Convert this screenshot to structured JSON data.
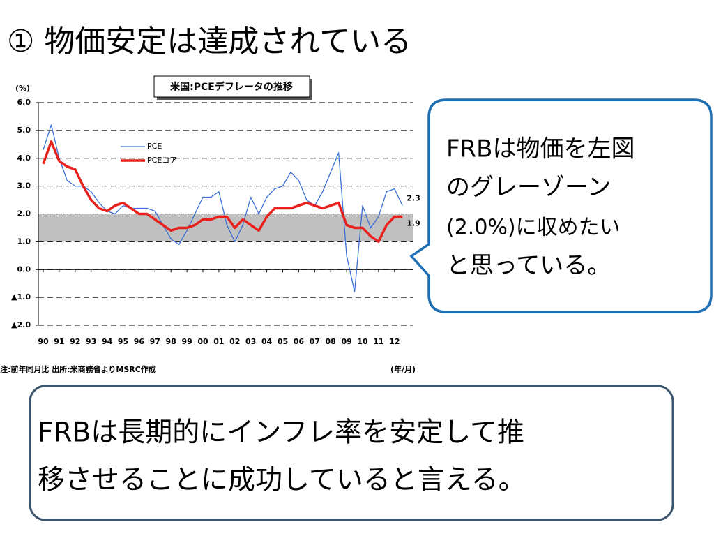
{
  "slide": {
    "title": "① 物価安定は達成されている",
    "callout_lines": [
      "FRBは物価を左図",
      "のグレーゾーン",
      "(2.0%)に収めたい",
      "と思っている。"
    ],
    "bottom_lines": [
      "FRBは長期的にインフレ率を安定して推",
      "移させることに成功していると言える。"
    ]
  },
  "chart_data": {
    "type": "line",
    "title": "米国:PCEデフレータの推移",
    "y_unit": "(%)",
    "x_unit": "(年/月)",
    "note": "注:前年同月比 出所:米商務省よりMSRC作成",
    "categories": [
      "90",
      null,
      "91",
      null,
      "92",
      null,
      "93",
      null,
      "94",
      null,
      "95",
      null,
      "96",
      null,
      "97",
      null,
      "98",
      null,
      "99",
      null,
      "00",
      null,
      "01",
      null,
      "02",
      null,
      "03",
      null,
      "04",
      null,
      "05",
      null,
      "06",
      null,
      "07",
      null,
      "08",
      null,
      "09",
      null,
      "10",
      null,
      "11",
      null,
      "12",
      null
    ],
    "series": [
      {
        "name": "PCE",
        "color": "#3a6fd8",
        "values": [
          4.3,
          5.2,
          4.0,
          3.2,
          3.0,
          3.0,
          2.8,
          2.4,
          2.1,
          2.0,
          2.3,
          2.2,
          2.2,
          2.2,
          2.1,
          1.6,
          1.1,
          0.9,
          1.4,
          2.0,
          2.6,
          2.6,
          2.8,
          1.6,
          1.0,
          1.6,
          2.6,
          2.0,
          2.6,
          2.9,
          3.0,
          3.5,
          3.2,
          2.5,
          2.3,
          2.8,
          3.5,
          4.2,
          0.5,
          -0.8,
          2.3,
          1.5,
          1.9,
          2.8,
          2.9,
          2.3
        ],
        "value_labels": [
          null,
          null,
          null,
          null,
          null,
          null,
          null,
          null,
          null,
          null,
          null,
          null,
          null,
          null,
          null,
          null,
          null,
          null,
          null,
          null,
          null,
          null,
          null,
          null,
          null,
          null,
          null,
          null,
          null,
          null,
          null,
          null,
          null,
          null,
          null,
          null,
          null,
          null,
          null,
          null,
          null,
          null,
          null,
          null,
          null,
          "2.3"
        ]
      },
      {
        "name": "PCEコア",
        "color": "#e8211c",
        "values": [
          3.8,
          4.6,
          3.9,
          3.7,
          3.6,
          3.0,
          2.5,
          2.2,
          2.1,
          2.3,
          2.4,
          2.2,
          2.0,
          2.0,
          1.8,
          1.6,
          1.4,
          1.5,
          1.5,
          1.6,
          1.8,
          1.8,
          1.9,
          1.9,
          1.5,
          1.8,
          1.6,
          1.4,
          1.9,
          2.2,
          2.2,
          2.2,
          2.3,
          2.4,
          2.3,
          2.2,
          2.3,
          2.4,
          1.6,
          1.5,
          1.5,
          1.2,
          1.0,
          1.6,
          1.9,
          1.9
        ],
        "value_labels": [
          null,
          null,
          null,
          null,
          null,
          null,
          null,
          null,
          null,
          null,
          null,
          null,
          null,
          null,
          null,
          null,
          null,
          null,
          null,
          null,
          null,
          null,
          null,
          null,
          null,
          null,
          null,
          null,
          null,
          null,
          null,
          null,
          null,
          null,
          null,
          null,
          null,
          null,
          null,
          null,
          null,
          null,
          null,
          null,
          null,
          "1.9"
        ]
      }
    ],
    "target_band": [
      1.0,
      2.0
    ],
    "band_color": "#c0c0c0",
    "ylim": [
      -2,
      6
    ],
    "yticks": [
      {
        "value": 6,
        "label": "6.0"
      },
      {
        "value": 5,
        "label": "5.0"
      },
      {
        "value": 4,
        "label": "4.0"
      },
      {
        "value": 3,
        "label": "3.0"
      },
      {
        "value": 2,
        "label": "2.0"
      },
      {
        "value": 1,
        "label": "1.0"
      },
      {
        "value": 0,
        "label": "0.0"
      },
      {
        "value": -1,
        "label": "▲1.0"
      },
      {
        "value": -2,
        "label": "▲2.0"
      }
    ],
    "grid": true
  }
}
